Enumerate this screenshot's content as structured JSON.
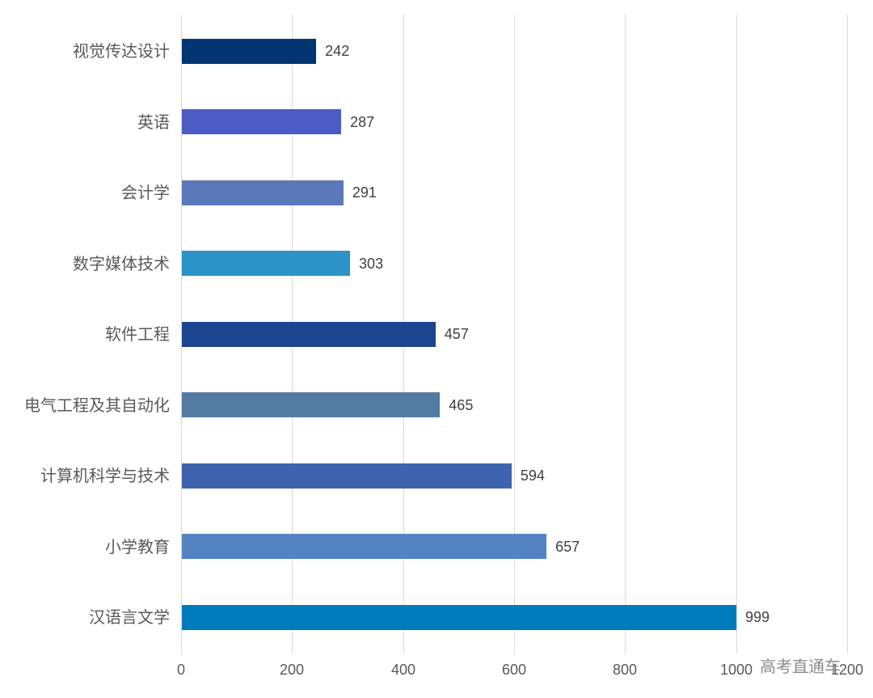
{
  "chart_data": {
    "type": "bar",
    "orientation": "horizontal",
    "title": "",
    "xlabel": "",
    "ylabel": "",
    "categories": [
      "视觉传达设计",
      "英语",
      "会计学",
      "数字媒体技术",
      "软件工程",
      "电气工程及其自动化",
      "计算机科学与技术",
      "小学教育",
      "汉语言文学"
    ],
    "values": [
      242,
      287,
      291,
      303,
      457,
      465,
      594,
      657,
      999
    ],
    "colors": [
      "#003473",
      "#4d5bc4",
      "#5b79ba",
      "#2b93c6",
      "#1b458e",
      "#527ca2",
      "#3d63ae",
      "#5383c3",
      "#007bbd"
    ],
    "xlim": [
      0,
      1200
    ],
    "xticks": [
      0,
      200,
      400,
      600,
      800,
      1000,
      1200
    ],
    "grid": true,
    "legend": null,
    "data_labels": true
  },
  "watermark": "高考直通车"
}
